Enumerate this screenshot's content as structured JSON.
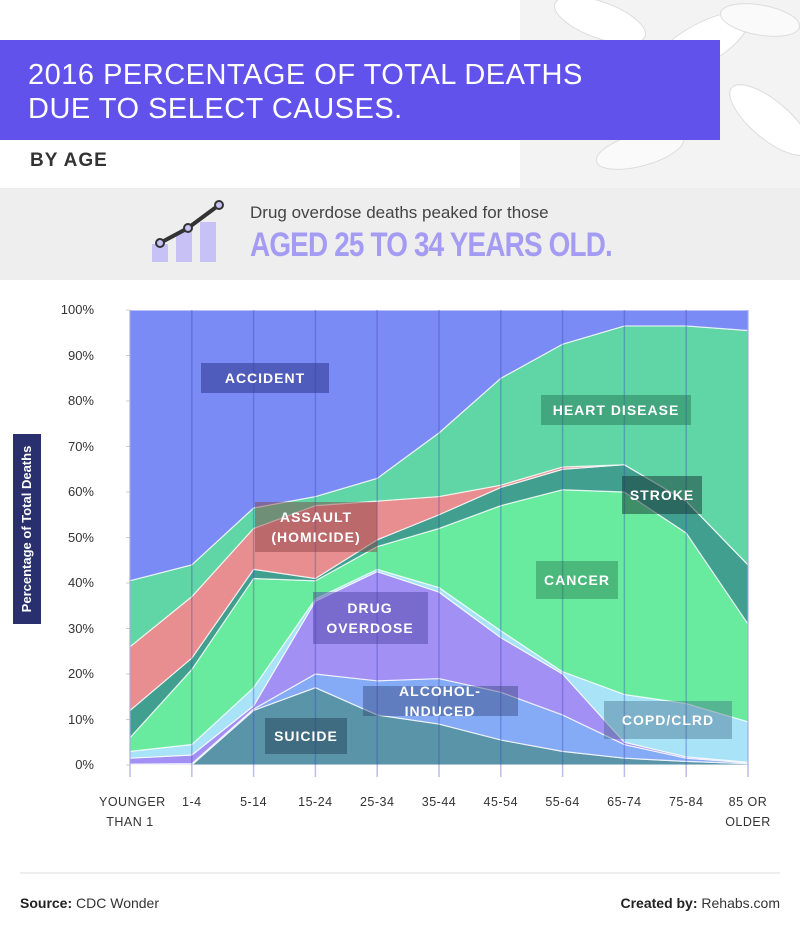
{
  "header": {
    "title": [
      "2016 PERCENTAGE OF TOTAL DEATHS",
      "DUE TO SELECT CAUSES."
    ],
    "subtitle": "BY AGE"
  },
  "callout": {
    "text": "Drug overdose deaths peaked for those",
    "highlight": "AGED 25 TO 34 YEARS OLD."
  },
  "chart_data": {
    "type": "stacked_area",
    "y_label": "Percentage of Total Deaths",
    "categories": [
      "YOUNGER THAN 1",
      "1-4",
      "5-14",
      "15-24",
      "25-34",
      "35-44",
      "45-54",
      "55-64",
      "65-74",
      "75-84",
      "85 OR OLDER"
    ],
    "ylim": [
      0,
      100
    ],
    "yticks": [
      {
        "value": 0,
        "label": "0%"
      },
      {
        "value": 10,
        "label": "10%"
      },
      {
        "value": 20,
        "label": "20%"
      },
      {
        "value": 30,
        "label": "30%"
      },
      {
        "value": 40,
        "label": "40%"
      },
      {
        "value": 50,
        "label": "50%"
      },
      {
        "value": 60,
        "label": "60%"
      },
      {
        "value": 70,
        "label": "70%"
      },
      {
        "value": 80,
        "label": "80%"
      },
      {
        "value": 90,
        "label": "90%"
      },
      {
        "value": 100,
        "label": "100%"
      }
    ],
    "series": [
      {
        "name": "SUICIDE",
        "color": "#5a94a9",
        "values": [
          0,
          0,
          12,
          17,
          11,
          9,
          5.5,
          3,
          1.5,
          0.8,
          0.3
        ]
      },
      {
        "name": "ALCOHOL-INDUCED",
        "color": "#86abf6",
        "values": [
          0.2,
          0.3,
          0.3,
          3,
          7.5,
          10,
          10.5,
          8,
          3,
          0.7,
          0.2
        ]
      },
      {
        "name": "DRUG OVERDOSE",
        "color": "#a290f4",
        "values": [
          1.3,
          1.9,
          0.7,
          16,
          24,
          19,
          12,
          9,
          0.5,
          0.3,
          0.1
        ]
      },
      {
        "name": "COPD/CLRD",
        "color": "#a8e3f8",
        "values": [
          1.5,
          2.3,
          4,
          0.5,
          0.5,
          1,
          1.5,
          0.5,
          10.5,
          11.7,
          8.9
        ]
      },
      {
        "name": "CANCER",
        "color": "#68eb9e",
        "values": [
          3,
          16.5,
          24,
          4,
          5,
          13,
          27.5,
          40,
          44.5,
          37.5,
          21.5
        ]
      },
      {
        "name": "STROKE",
        "color": "#409f8e",
        "values": [
          6,
          2.5,
          2,
          0.5,
          1.5,
          3,
          4,
          4.5,
          6,
          7,
          13
        ]
      },
      {
        "name": "ASSAULT (HOMICIDE)",
        "color": "#e98e90",
        "values": [
          14,
          13.5,
          9,
          16,
          8.5,
          4,
          0.5,
          0.5,
          0,
          0,
          0
        ]
      },
      {
        "name": "HEART DISEASE",
        "color": "#60d5a6",
        "values": [
          14.5,
          7,
          4.5,
          2,
          5,
          14,
          23.5,
          27,
          30.5,
          38.5,
          51.5
        ]
      },
      {
        "name": "ACCIDENT",
        "color": "#7a8bf5",
        "values": [
          59.5,
          56,
          43.5,
          41,
          37,
          27,
          15,
          7.5,
          3.5,
          3.5,
          4.5
        ]
      }
    ]
  },
  "footer": {
    "source_label": "Source:",
    "source": "CDC Wonder",
    "credit_label": "Created by:",
    "credit": "Rehabs.com"
  }
}
